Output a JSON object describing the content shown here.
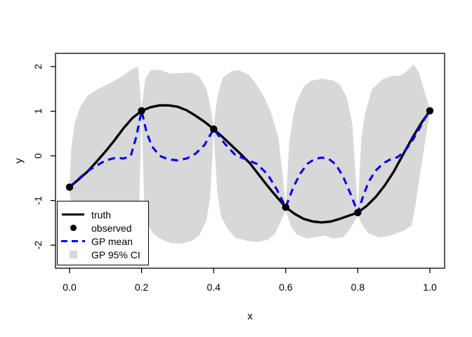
{
  "figure": {
    "background": "#ffffff"
  },
  "axes": {
    "x_title": "x",
    "y_title": "y",
    "xtick_labels": [
      "0.0",
      "0.2",
      "0.4",
      "0.6",
      "0.8",
      "1.0"
    ],
    "xtick_values": [
      0,
      0.2,
      0.4,
      0.6,
      0.8,
      1.0
    ],
    "ytick_labels": [
      "-2",
      "-1",
      "0",
      "1",
      "2"
    ],
    "ytick_values": [
      -2,
      -1,
      0,
      1,
      2
    ]
  },
  "legend": {
    "items": [
      {
        "label": "truth",
        "sample": "solid-line",
        "color": "#000000"
      },
      {
        "label": "observed",
        "sample": "filled-point",
        "color": "#000000"
      },
      {
        "label": "GP mean",
        "sample": "dashed-line",
        "color": "#0000ee"
      },
      {
        "label": "GP 95% CI",
        "sample": "filled-box",
        "color": "#d8d8d8"
      }
    ]
  },
  "chart_data": {
    "type": "line",
    "title": "",
    "xlabel": "x",
    "ylabel": "y",
    "xlim": [
      -0.04,
      1.04
    ],
    "ylim": [
      -2.45,
      2.3
    ],
    "grid": false,
    "legend_position": "bottom-left",
    "colors": {
      "truth": "#000000",
      "observed": "#000000",
      "gp_mean": "#0000ee",
      "ci_band": "#d8d8d8"
    },
    "series": [
      {
        "name": "truth",
        "type": "line",
        "style": "solid",
        "points": [
          [
            0,
            -0.7
          ],
          [
            0.025,
            -0.53
          ],
          [
            0.05,
            -0.35
          ],
          [
            0.075,
            -0.13
          ],
          [
            0.1,
            0.1
          ],
          [
            0.125,
            0.35
          ],
          [
            0.15,
            0.62
          ],
          [
            0.175,
            0.85
          ],
          [
            0.2,
            1.01
          ],
          [
            0.225,
            1.09
          ],
          [
            0.25,
            1.13
          ],
          [
            0.275,
            1.13
          ],
          [
            0.3,
            1.1
          ],
          [
            0.325,
            1.02
          ],
          [
            0.35,
            0.9
          ],
          [
            0.375,
            0.76
          ],
          [
            0.4,
            0.6
          ],
          [
            0.425,
            0.42
          ],
          [
            0.45,
            0.23
          ],
          [
            0.475,
            0.04
          ],
          [
            0.5,
            -0.16
          ],
          [
            0.525,
            -0.42
          ],
          [
            0.55,
            -0.68
          ],
          [
            0.575,
            -0.92
          ],
          [
            0.6,
            -1.15
          ],
          [
            0.625,
            -1.3
          ],
          [
            0.65,
            -1.41
          ],
          [
            0.675,
            -1.47
          ],
          [
            0.7,
            -1.49
          ],
          [
            0.725,
            -1.47
          ],
          [
            0.75,
            -1.41
          ],
          [
            0.775,
            -1.34
          ],
          [
            0.8,
            -1.27
          ],
          [
            0.825,
            -1.12
          ],
          [
            0.85,
            -0.92
          ],
          [
            0.875,
            -0.66
          ],
          [
            0.9,
            -0.35
          ],
          [
            0.925,
            0.02
          ],
          [
            0.95,
            0.38
          ],
          [
            0.975,
            0.72
          ],
          [
            1,
            1.01
          ]
        ]
      },
      {
        "name": "observed",
        "type": "scatter",
        "points": [
          [
            0,
            -0.7
          ],
          [
            0.2,
            1.01
          ],
          [
            0.4,
            0.6
          ],
          [
            0.6,
            -1.15
          ],
          [
            0.8,
            -1.27
          ],
          [
            1,
            1.01
          ]
        ]
      },
      {
        "name": "GP mean",
        "type": "line",
        "style": "dashed",
        "points": [
          [
            0,
            -0.7
          ],
          [
            0.03,
            -0.48
          ],
          [
            0.05,
            -0.34
          ],
          [
            0.075,
            -0.22
          ],
          [
            0.1,
            -0.1
          ],
          [
            0.13,
            -0.04
          ],
          [
            0.15,
            -0.06
          ],
          [
            0.17,
            0
          ],
          [
            0.185,
            0.42
          ],
          [
            0.2,
            1.01
          ],
          [
            0.213,
            0.55
          ],
          [
            0.228,
            0.22
          ],
          [
            0.25,
            0
          ],
          [
            0.275,
            -0.08
          ],
          [
            0.3,
            -0.1
          ],
          [
            0.325,
            -0.06
          ],
          [
            0.35,
            0.05
          ],
          [
            0.375,
            0.25
          ],
          [
            0.4,
            0.6
          ],
          [
            0.43,
            0.28
          ],
          [
            0.46,
            0.02
          ],
          [
            0.49,
            -0.08
          ],
          [
            0.52,
            -0.18
          ],
          [
            0.55,
            -0.42
          ],
          [
            0.575,
            -0.75
          ],
          [
            0.6,
            -1.15
          ],
          [
            0.62,
            -0.72
          ],
          [
            0.64,
            -0.4
          ],
          [
            0.66,
            -0.18
          ],
          [
            0.68,
            -0.07
          ],
          [
            0.7,
            -0.04
          ],
          [
            0.72,
            -0.07
          ],
          [
            0.74,
            -0.2
          ],
          [
            0.76,
            -0.48
          ],
          [
            0.78,
            -0.85
          ],
          [
            0.8,
            -1.27
          ],
          [
            0.815,
            -0.9
          ],
          [
            0.83,
            -0.58
          ],
          [
            0.85,
            -0.33
          ],
          [
            0.87,
            -0.17
          ],
          [
            0.89,
            -0.08
          ],
          [
            0.91,
            -0.03
          ],
          [
            0.93,
            0.1
          ],
          [
            0.95,
            0.32
          ],
          [
            0.97,
            0.6
          ],
          [
            0.985,
            0.82
          ],
          [
            1,
            1.01
          ]
        ]
      },
      {
        "name": "GP 95% CI",
        "type": "band",
        "upper": [
          [
            0,
            -0.6
          ],
          [
            0.005,
            0.2
          ],
          [
            0.015,
            0.75
          ],
          [
            0.03,
            1.1
          ],
          [
            0.05,
            1.35
          ],
          [
            0.08,
            1.5
          ],
          [
            0.11,
            1.62
          ],
          [
            0.14,
            1.75
          ],
          [
            0.17,
            1.92
          ],
          [
            0.19,
            2.0
          ],
          [
            0.2,
            1.06
          ],
          [
            0.21,
            1.72
          ],
          [
            0.225,
            1.92
          ],
          [
            0.25,
            1.93
          ],
          [
            0.28,
            1.84
          ],
          [
            0.31,
            1.86
          ],
          [
            0.34,
            1.86
          ],
          [
            0.36,
            1.78
          ],
          [
            0.38,
            1.5
          ],
          [
            0.39,
            1.15
          ],
          [
            0.4,
            0.65
          ],
          [
            0.41,
            1.3
          ],
          [
            0.425,
            1.75
          ],
          [
            0.45,
            1.9
          ],
          [
            0.47,
            1.92
          ],
          [
            0.5,
            1.8
          ],
          [
            0.52,
            1.58
          ],
          [
            0.54,
            1.32
          ],
          [
            0.56,
            0.95
          ],
          [
            0.58,
            0.4
          ],
          [
            0.6,
            -1.1
          ],
          [
            0.61,
            0.3
          ],
          [
            0.62,
            0.85
          ],
          [
            0.63,
            1.2
          ],
          [
            0.65,
            1.55
          ],
          [
            0.67,
            1.68
          ],
          [
            0.7,
            1.73
          ],
          [
            0.73,
            1.69
          ],
          [
            0.75,
            1.6
          ],
          [
            0.77,
            1.3
          ],
          [
            0.785,
            0.7
          ],
          [
            0.8,
            -1.2
          ],
          [
            0.81,
            0.4
          ],
          [
            0.82,
            0.95
          ],
          [
            0.84,
            1.5
          ],
          [
            0.87,
            1.72
          ],
          [
            0.9,
            1.8
          ],
          [
            0.915,
            1.79
          ],
          [
            0.93,
            1.85
          ],
          [
            0.955,
            2.05
          ],
          [
            0.97,
            1.85
          ],
          [
            0.985,
            1.45
          ],
          [
            1,
            1.05
          ]
        ],
        "lower": [
          [
            0,
            -0.8
          ],
          [
            0.005,
            -1.15
          ],
          [
            0.015,
            -1.45
          ],
          [
            0.03,
            -1.65
          ],
          [
            0.05,
            -1.78
          ],
          [
            0.08,
            -1.84
          ],
          [
            0.11,
            -1.8
          ],
          [
            0.14,
            -1.84
          ],
          [
            0.17,
            -1.88
          ],
          [
            0.185,
            -1.78
          ],
          [
            0.193,
            -1.2
          ],
          [
            0.2,
            0.96
          ],
          [
            0.207,
            -0.95
          ],
          [
            0.215,
            -1.5
          ],
          [
            0.23,
            -1.72
          ],
          [
            0.25,
            -1.85
          ],
          [
            0.28,
            -1.95
          ],
          [
            0.31,
            -1.97
          ],
          [
            0.34,
            -1.9
          ],
          [
            0.36,
            -1.78
          ],
          [
            0.38,
            -1.45
          ],
          [
            0.39,
            -0.95
          ],
          [
            0.4,
            0.55
          ],
          [
            0.41,
            -0.8
          ],
          [
            0.42,
            -1.35
          ],
          [
            0.44,
            -1.65
          ],
          [
            0.46,
            -1.83
          ],
          [
            0.49,
            -1.9
          ],
          [
            0.52,
            -1.93
          ],
          [
            0.55,
            -1.88
          ],
          [
            0.57,
            -1.75
          ],
          [
            0.585,
            -1.5
          ],
          [
            0.6,
            -1.22
          ],
          [
            0.615,
            -1.58
          ],
          [
            0.63,
            -1.76
          ],
          [
            0.66,
            -1.85
          ],
          [
            0.69,
            -1.81
          ],
          [
            0.71,
            -1.79
          ],
          [
            0.73,
            -1.85
          ],
          [
            0.76,
            -1.82
          ],
          [
            0.78,
            -1.62
          ],
          [
            0.8,
            -1.34
          ],
          [
            0.815,
            -1.58
          ],
          [
            0.83,
            -1.74
          ],
          [
            0.86,
            -1.83
          ],
          [
            0.89,
            -1.79
          ],
          [
            0.91,
            -1.73
          ],
          [
            0.93,
            -1.67
          ],
          [
            0.95,
            -1.55
          ],
          [
            0.96,
            -1.1
          ],
          [
            0.97,
            -0.55
          ],
          [
            0.98,
            -0.05
          ],
          [
            0.99,
            0.5
          ],
          [
            1,
            0.96
          ]
        ]
      }
    ]
  }
}
